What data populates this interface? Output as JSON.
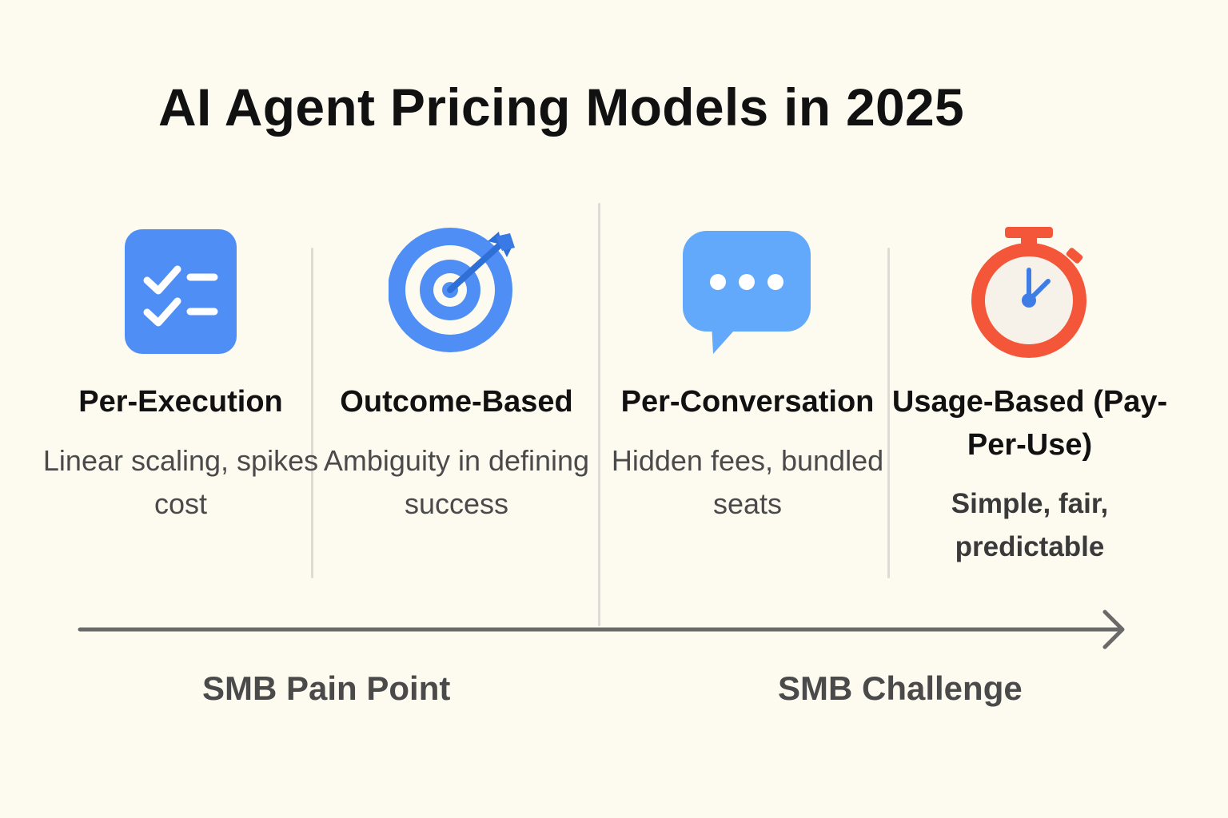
{
  "title": "AI Agent Pricing Models in 2025",
  "colors": {
    "background": "#fdfbf0",
    "icon_blue": "#4f8ff5",
    "icon_blue_light": "#62a8fb",
    "icon_red": "#f4563a"
  },
  "models": [
    {
      "title": "Per-Execution",
      "description": "Linear scaling, spikes cost",
      "icon": "checklist-icon"
    },
    {
      "title": "Outcome-Based",
      "description": "Ambiguity in defining success",
      "icon": "target-icon"
    },
    {
      "title": "Per-Conversation",
      "description": "Hidden fees, bundled seats",
      "icon": "chat-bubble-icon"
    },
    {
      "title": "Usage-Based (Pay-Per-Use)",
      "description": "Simple, fair, predictable",
      "icon": "stopwatch-icon"
    }
  ],
  "axis": {
    "left_label": "SMB Pain Point",
    "right_label": "SMB Challenge"
  }
}
